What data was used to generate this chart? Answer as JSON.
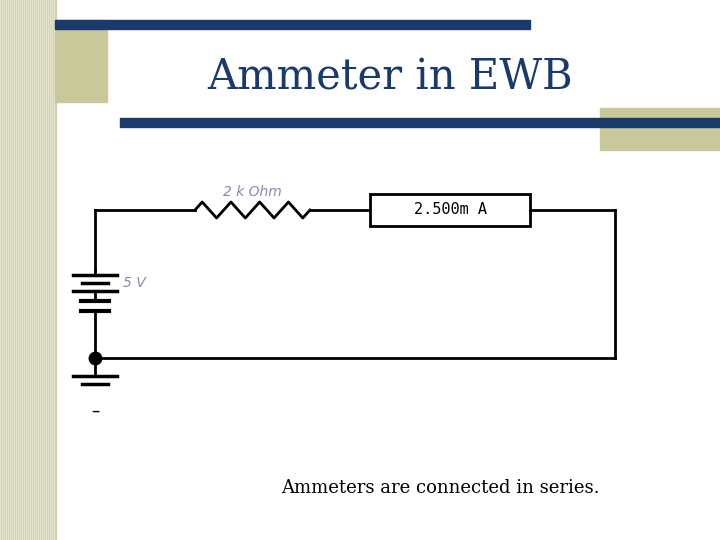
{
  "title": "Ammeter in EWB",
  "title_color": "#1a3a6b",
  "title_fontsize": 30,
  "bg_color": "#ffffff",
  "subtitle_text": "Ammeters are connected in series.",
  "subtitle_color": "#000000",
  "subtitle_fontsize": 13,
  "resistor_label": "2 k Ohm",
  "resistor_label_color": "#8888bb",
  "voltage_label": "5 V",
  "voltage_label_color": "#8888bb",
  "ammeter_display": "2.500m A",
  "ammeter_display_color": "#000000",
  "circuit_color": "#000000",
  "deco_bar_color": "#1a3a6b",
  "deco_rect_color": "#c8c89a",
  "stripe_color_light": "#e8e8d0",
  "stripe_color_dark": "#d0d0b8"
}
